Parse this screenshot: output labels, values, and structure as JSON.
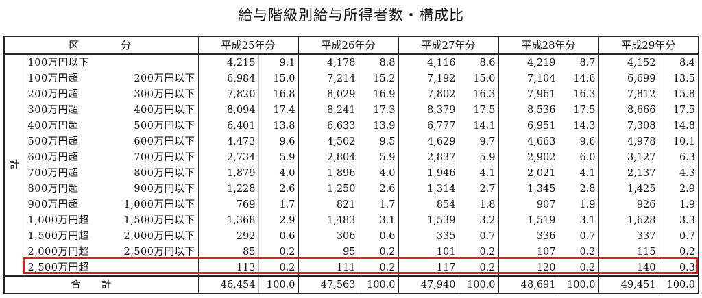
{
  "title": "給与階級別給与所得者数・構成比",
  "header": {
    "kubun": "区　　　分",
    "years": [
      "平成25年分",
      "平成26年分",
      "平成27年分",
      "平成28年分",
      "平成29年分"
    ]
  },
  "side_label": "計",
  "rows": [
    {
      "a": "100万円以下",
      "b": "",
      "v": [
        [
          "4,215",
          "9.1"
        ],
        [
          "4,178",
          "8.8"
        ],
        [
          "4,116",
          "8.6"
        ],
        [
          "4,219",
          "8.7"
        ],
        [
          "4,152",
          "8.4"
        ]
      ]
    },
    {
      "a": "100万円超",
      "b": "200万円以下",
      "v": [
        [
          "6,984",
          "15.0"
        ],
        [
          "7,214",
          "15.2"
        ],
        [
          "7,192",
          "15.0"
        ],
        [
          "7,104",
          "14.6"
        ],
        [
          "6,699",
          "13.5"
        ]
      ]
    },
    {
      "a": "200万円超",
      "b": "300万円以下",
      "v": [
        [
          "7,820",
          "16.8"
        ],
        [
          "8,029",
          "16.9"
        ],
        [
          "7,802",
          "16.3"
        ],
        [
          "7,961",
          "16.3"
        ],
        [
          "7,812",
          "15.8"
        ]
      ]
    },
    {
      "a": "300万円超",
      "b": "400万円以下",
      "v": [
        [
          "8,094",
          "17.4"
        ],
        [
          "8,241",
          "17.3"
        ],
        [
          "8,379",
          "17.5"
        ],
        [
          "8,536",
          "17.5"
        ],
        [
          "8,666",
          "17.5"
        ]
      ]
    },
    {
      "a": "400万円超",
      "b": "500万円以下",
      "v": [
        [
          "6,401",
          "13.8"
        ],
        [
          "6,633",
          "13.9"
        ],
        [
          "6,777",
          "14.1"
        ],
        [
          "6,951",
          "14.3"
        ],
        [
          "7,308",
          "14.8"
        ]
      ]
    },
    {
      "a": "500万円超",
      "b": "600万円以下",
      "v": [
        [
          "4,473",
          "9.6"
        ],
        [
          "4,502",
          "9.5"
        ],
        [
          "4,629",
          "9.7"
        ],
        [
          "4,663",
          "9.6"
        ],
        [
          "4,978",
          "10.1"
        ]
      ]
    },
    {
      "a": "600万円超",
      "b": "700万円以下",
      "v": [
        [
          "2,734",
          "5.9"
        ],
        [
          "2,804",
          "5.9"
        ],
        [
          "2,837",
          "5.9"
        ],
        [
          "2,902",
          "6.0"
        ],
        [
          "3,127",
          "6.3"
        ]
      ]
    },
    {
      "a": "700万円超",
      "b": "800万円以下",
      "v": [
        [
          "1,879",
          "4.0"
        ],
        [
          "1,896",
          "4.0"
        ],
        [
          "1,946",
          "4.1"
        ],
        [
          "2,021",
          "4.1"
        ],
        [
          "2,137",
          "4.3"
        ]
      ]
    },
    {
      "a": "800万円超",
      "b": "900万円以下",
      "v": [
        [
          "1,228",
          "2.6"
        ],
        [
          "1,250",
          "2.6"
        ],
        [
          "1,314",
          "2.7"
        ],
        [
          "1,345",
          "2.8"
        ],
        [
          "1,425",
          "2.9"
        ]
      ]
    },
    {
      "a": "900万円超",
      "b": "1,000万円以下",
      "v": [
        [
          "769",
          "1.7"
        ],
        [
          "821",
          "1.7"
        ],
        [
          "854",
          "1.8"
        ],
        [
          "907",
          "1.9"
        ],
        [
          "926",
          "1.9"
        ]
      ]
    },
    {
      "a": "1,000万円超",
      "b": "1,500万円以下",
      "v": [
        [
          "1,368",
          "2.9"
        ],
        [
          "1,483",
          "3.1"
        ],
        [
          "1,539",
          "3.2"
        ],
        [
          "1,519",
          "3.1"
        ],
        [
          "1,628",
          "3.3"
        ]
      ]
    },
    {
      "a": "1,500万円超",
      "b": "2,000万円以下",
      "v": [
        [
          "292",
          "0.6"
        ],
        [
          "306",
          "0.6"
        ],
        [
          "335",
          "0.7"
        ],
        [
          "336",
          "0.7"
        ],
        [
          "337",
          "0.7"
        ]
      ]
    },
    {
      "a": "2,000万円超",
      "b": "2,500万円以下",
      "v": [
        [
          "85",
          "0.2"
        ],
        [
          "95",
          "0.2"
        ],
        [
          "101",
          "0.2"
        ],
        [
          "107",
          "0.2"
        ],
        [
          "115",
          "0.2"
        ]
      ]
    },
    {
      "a": "2,500万円超",
      "b": "",
      "v": [
        [
          "113",
          "0.2"
        ],
        [
          "111",
          "0.2"
        ],
        [
          "117",
          "0.2"
        ],
        [
          "120",
          "0.2"
        ],
        [
          "140",
          "0.3"
        ]
      ]
    }
  ],
  "total": {
    "label": "合計",
    "v": [
      [
        "46,454",
        "100.0"
      ],
      [
        "47,563",
        "100.0"
      ],
      [
        "47,940",
        "100.0"
      ],
      [
        "48,691",
        "100.0"
      ],
      [
        "49,451",
        "100.0"
      ]
    ]
  },
  "highlight_color": "#e01b24"
}
